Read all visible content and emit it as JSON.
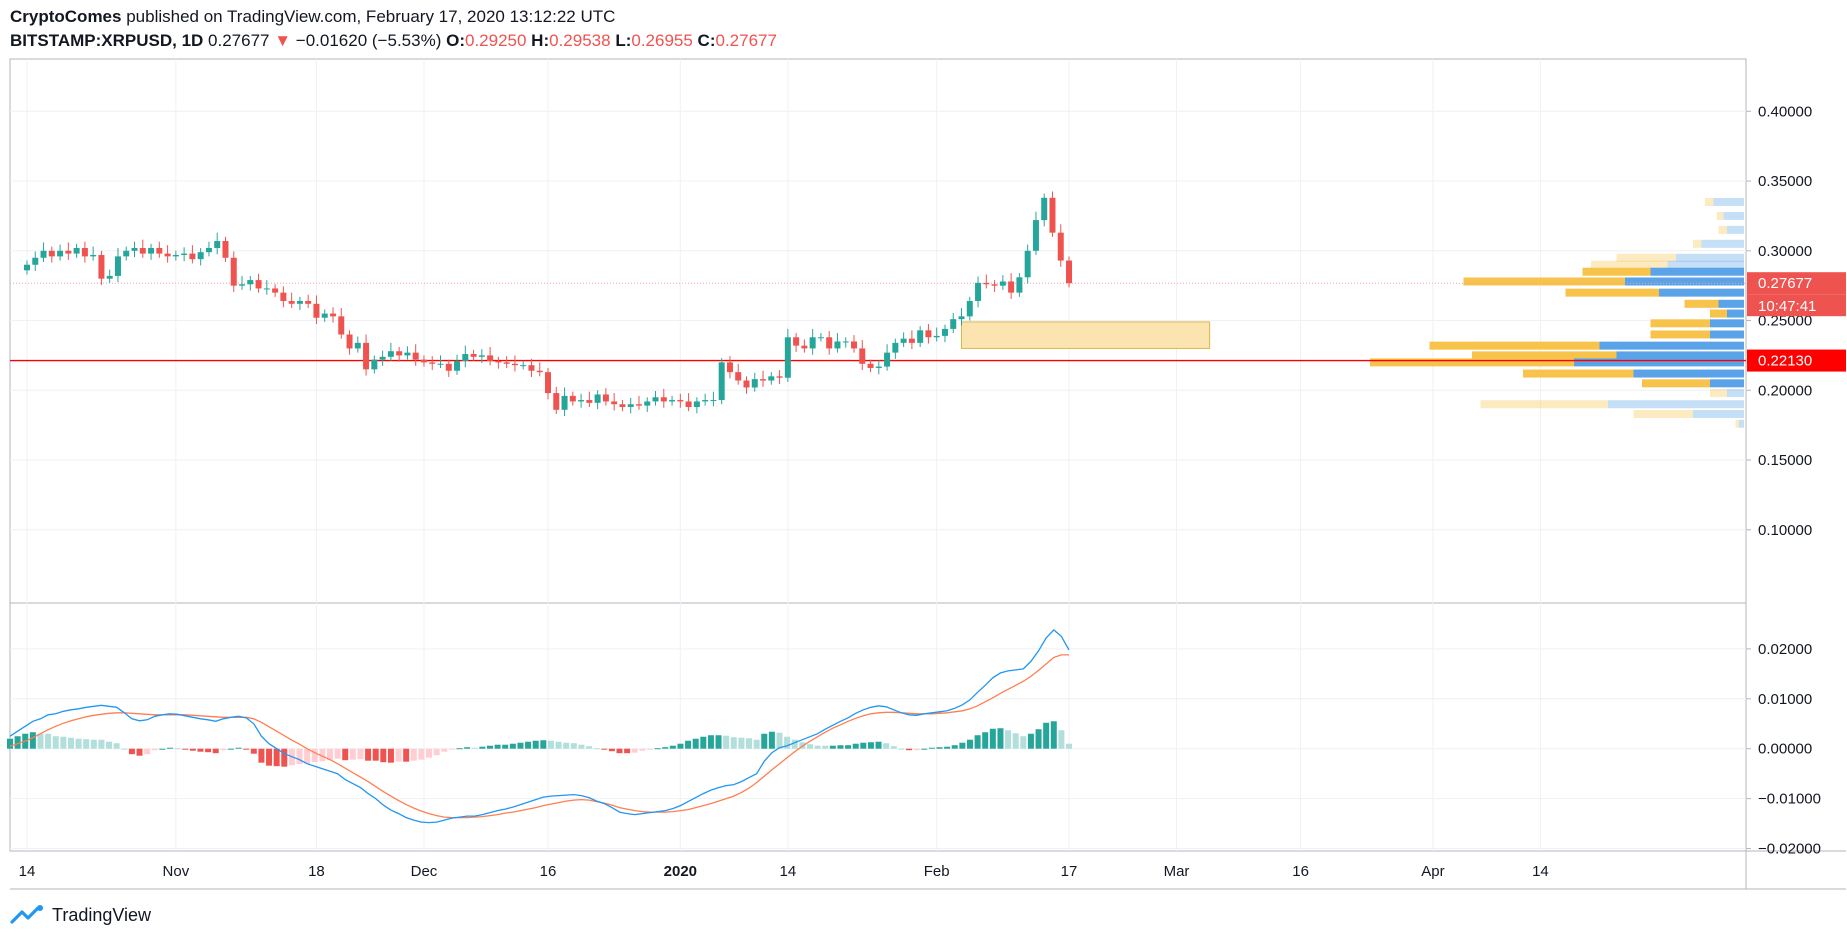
{
  "header": {
    "author": "CryptoComes",
    "published_text": "published on TradingView.com, February 17, 2020 13:12:22 UTC",
    "symbol": "BITSTAMP:XRPUSD, 1D",
    "last": "0.27677",
    "arrow": "▼",
    "change": "−0.01620 (−5.53%)",
    "o_label": "O:",
    "o_value": "0.29250",
    "h_label": "H:",
    "h_value": "0.29538",
    "l_label": "L:",
    "l_value": "0.26955",
    "c_label": "C:",
    "c_value": "0.27677"
  },
  "footer": {
    "brand": "TradingView",
    "logo_icon": "tradingview-logo-icon"
  },
  "colors": {
    "up": "#26a69a",
    "down": "#ef5350",
    "hist_up_strong": "#26a69a",
    "hist_up_weak": "#b2dfdb",
    "hist_down_strong": "#ef5350",
    "hist_down_weak": "#ffcdd2",
    "macd_line": "#2196f3",
    "signal_line": "#ff7f50",
    "support_line": "#ff0000",
    "zone": "#fce4b0",
    "vp_up": "#5aa3e8",
    "vp_down": "#f7c34a"
  },
  "chart_data": [
    {
      "type": "candlestick",
      "title": "",
      "x_tick_labels": [
        "14",
        "Nov",
        "18",
        "Dec",
        "16",
        "2020",
        "14",
        "Feb",
        "17",
        "Mar",
        "16",
        "Apr",
        "14"
      ],
      "y_tick_labels": [
        "0.40000",
        "0.35000",
        "0.30000",
        "0.25000",
        "0.20000",
        "0.15000",
        "0.10000"
      ],
      "ylim": [
        0.0475,
        0.4375
      ],
      "price_labels": [
        {
          "value": 0.27677,
          "text": "0.27677",
          "countdown": "10:47:41"
        },
        {
          "value": 0.2213,
          "text": "0.22130"
        }
      ],
      "support_level": 0.2213,
      "zone": {
        "from": "2020-02-04",
        "to": "2020-03-05",
        "low": 0.23,
        "high": 0.249
      },
      "candles_daily_close": [
        [
          "2019-10-14",
          0.29
        ],
        [
          "2019-10-15",
          0.295
        ],
        [
          "2019-10-16",
          0.3
        ],
        [
          "2019-10-17",
          0.296
        ],
        [
          "2019-10-18",
          0.3
        ],
        [
          "2019-10-19",
          0.298
        ],
        [
          "2019-10-20",
          0.302
        ],
        [
          "2019-10-21",
          0.296
        ],
        [
          "2019-10-22",
          0.297
        ],
        [
          "2019-10-23",
          0.28
        ],
        [
          "2019-10-24",
          0.282
        ],
        [
          "2019-10-25",
          0.296
        ],
        [
          "2019-10-26",
          0.3
        ],
        [
          "2019-10-27",
          0.302
        ],
        [
          "2019-10-28",
          0.298
        ],
        [
          "2019-10-29",
          0.302
        ],
        [
          "2019-10-30",
          0.298
        ],
        [
          "2019-10-31",
          0.296
        ],
        [
          "2019-11-01",
          0.297
        ],
        [
          "2019-11-02",
          0.298
        ],
        [
          "2019-11-03",
          0.294
        ],
        [
          "2019-11-04",
          0.299
        ],
        [
          "2019-11-05",
          0.302
        ],
        [
          "2019-11-06",
          0.307
        ],
        [
          "2019-11-07",
          0.295
        ],
        [
          "2019-11-08",
          0.275
        ],
        [
          "2019-11-09",
          0.276
        ],
        [
          "2019-11-10",
          0.279
        ],
        [
          "2019-11-11",
          0.273
        ],
        [
          "2019-11-12",
          0.273
        ],
        [
          "2019-11-13",
          0.27
        ],
        [
          "2019-11-14",
          0.264
        ],
        [
          "2019-11-15",
          0.262
        ],
        [
          "2019-11-16",
          0.264
        ],
        [
          "2019-11-17",
          0.262
        ],
        [
          "2019-11-18",
          0.252
        ],
        [
          "2019-11-19",
          0.255
        ],
        [
          "2019-11-20",
          0.253
        ],
        [
          "2019-11-21",
          0.24
        ],
        [
          "2019-11-22",
          0.23
        ],
        [
          "2019-11-23",
          0.234
        ],
        [
          "2019-11-24",
          0.215
        ],
        [
          "2019-11-25",
          0.222
        ],
        [
          "2019-11-26",
          0.224
        ],
        [
          "2019-11-27",
          0.228
        ],
        [
          "2019-11-28",
          0.225
        ],
        [
          "2019-11-29",
          0.227
        ],
        [
          "2019-11-30",
          0.222
        ],
        [
          "2019-12-01",
          0.22
        ],
        [
          "2019-12-02",
          0.219
        ],
        [
          "2019-12-03",
          0.219
        ],
        [
          "2019-12-04",
          0.214
        ],
        [
          "2019-12-05",
          0.221
        ],
        [
          "2019-12-06",
          0.226
        ],
        [
          "2019-12-07",
          0.224
        ],
        [
          "2019-12-08",
          0.225
        ],
        [
          "2019-12-09",
          0.221
        ],
        [
          "2019-12-10",
          0.22
        ],
        [
          "2019-12-11",
          0.219
        ],
        [
          "2019-12-12",
          0.218
        ],
        [
          "2019-12-13",
          0.218
        ],
        [
          "2019-12-14",
          0.214
        ],
        [
          "2019-12-15",
          0.213
        ],
        [
          "2019-12-16",
          0.198
        ],
        [
          "2019-12-17",
          0.186
        ],
        [
          "2019-12-18",
          0.196
        ],
        [
          "2019-12-19",
          0.192
        ],
        [
          "2019-12-20",
          0.193
        ],
        [
          "2019-12-21",
          0.191
        ],
        [
          "2019-12-22",
          0.197
        ],
        [
          "2019-12-23",
          0.192
        ],
        [
          "2019-12-24",
          0.19
        ],
        [
          "2019-12-25",
          0.188
        ],
        [
          "2019-12-26",
          0.19
        ],
        [
          "2019-12-27",
          0.189
        ],
        [
          "2019-12-28",
          0.192
        ],
        [
          "2019-12-29",
          0.195
        ],
        [
          "2019-12-30",
          0.192
        ],
        [
          "2019-12-31",
          0.193
        ],
        [
          "2020-01-01",
          0.192
        ],
        [
          "2020-01-02",
          0.188
        ],
        [
          "2020-01-03",
          0.192
        ],
        [
          "2020-01-04",
          0.193
        ],
        [
          "2020-01-05",
          0.193
        ],
        [
          "2020-01-06",
          0.22
        ],
        [
          "2020-01-07",
          0.213
        ],
        [
          "2020-01-08",
          0.207
        ],
        [
          "2020-01-09",
          0.202
        ],
        [
          "2020-01-10",
          0.208
        ],
        [
          "2020-01-11",
          0.207
        ],
        [
          "2020-01-12",
          0.21
        ],
        [
          "2020-01-13",
          0.209
        ],
        [
          "2020-01-14",
          0.238
        ],
        [
          "2020-01-15",
          0.232
        ],
        [
          "2020-01-16",
          0.23
        ],
        [
          "2020-01-17",
          0.238
        ],
        [
          "2020-01-18",
          0.238
        ],
        [
          "2020-01-19",
          0.23
        ],
        [
          "2020-01-20",
          0.235
        ],
        [
          "2020-01-21",
          0.235
        ],
        [
          "2020-01-22",
          0.23
        ],
        [
          "2020-01-23",
          0.219
        ],
        [
          "2020-01-24",
          0.216
        ],
        [
          "2020-01-25",
          0.217
        ],
        [
          "2020-01-26",
          0.227
        ],
        [
          "2020-01-27",
          0.234
        ],
        [
          "2020-01-28",
          0.237
        ],
        [
          "2020-01-29",
          0.234
        ],
        [
          "2020-01-30",
          0.243
        ],
        [
          "2020-01-31",
          0.238
        ],
        [
          "2020-02-01",
          0.239
        ],
        [
          "2020-02-02",
          0.244
        ],
        [
          "2020-02-03",
          0.251
        ],
        [
          "2020-02-04",
          0.253
        ],
        [
          "2020-02-05",
          0.264
        ],
        [
          "2020-02-06",
          0.277
        ],
        [
          "2020-02-07",
          0.276
        ],
        [
          "2020-02-08",
          0.275
        ],
        [
          "2020-02-09",
          0.278
        ],
        [
          "2020-02-10",
          0.27
        ],
        [
          "2020-02-11",
          0.281
        ],
        [
          "2020-02-12",
          0.3
        ],
        [
          "2020-02-13",
          0.322
        ],
        [
          "2020-02-14",
          0.338
        ],
        [
          "2020-02-15",
          0.313
        ],
        [
          "2020-02-16",
          0.293
        ],
        [
          "2020-02-17",
          0.27677
        ]
      ],
      "candles_daily_close_note": "",
      "volume_profile": {
        "rows": [
          {
            "price": 0.335,
            "up": 0.18,
            "down": 0.05,
            "faded": true
          },
          {
            "price": 0.325,
            "up": 0.12,
            "down": 0.04,
            "faded": true
          },
          {
            "price": 0.315,
            "up": 0.1,
            "down": 0.05,
            "faded": true
          },
          {
            "price": 0.305,
            "up": 0.25,
            "down": 0.05,
            "faded": true
          },
          {
            "price": 0.295,
            "up": 0.4,
            "down": 0.35,
            "faded": true
          },
          {
            "price": 0.29,
            "up": 0.45,
            "down": 0.45,
            "faded": true
          },
          {
            "price": 0.285,
            "up": 0.55,
            "down": 0.4,
            "faded": false
          },
          {
            "price": 0.278,
            "up": 0.7,
            "down": 0.95,
            "faded": false
          },
          {
            "price": 0.27,
            "up": 0.5,
            "down": 0.55,
            "faded": false
          },
          {
            "price": 0.262,
            "up": 0.15,
            "down": 0.2,
            "faded": false
          },
          {
            "price": 0.255,
            "up": 0.1,
            "down": 0.1,
            "faded": false
          },
          {
            "price": 0.248,
            "up": 0.2,
            "down": 0.35,
            "faded": false
          },
          {
            "price": 0.24,
            "up": 0.2,
            "down": 0.35,
            "faded": false
          },
          {
            "price": 0.232,
            "up": 0.85,
            "down": 1.0,
            "faded": false
          },
          {
            "price": 0.225,
            "up": 0.75,
            "down": 0.85,
            "faded": false
          },
          {
            "price": 0.22,
            "up": 1.0,
            "down": 1.2,
            "faded": false
          },
          {
            "price": 0.212,
            "up": 0.65,
            "down": 0.65,
            "faded": false
          },
          {
            "price": 0.205,
            "up": 0.2,
            "down": 0.4,
            "faded": false
          },
          {
            "price": 0.198,
            "up": 0.1,
            "down": 0.1,
            "faded": true
          },
          {
            "price": 0.19,
            "up": 0.8,
            "down": 0.75,
            "faded": true
          },
          {
            "price": 0.183,
            "up": 0.3,
            "down": 0.35,
            "faded": true
          },
          {
            "price": 0.176,
            "up": 0.03,
            "down": 0.02,
            "faded": true
          }
        ]
      }
    },
    {
      "type": "macd",
      "title": "",
      "y_tick_labels": [
        "0.02000",
        "0.01000",
        "0.00000",
        "−0.01000",
        "−0.02000"
      ],
      "ylim": [
        -0.0205,
        0.0292
      ],
      "macd": [
        0.0025,
        0.0035,
        0.0045,
        0.0055,
        0.006,
        0.0068,
        0.007,
        0.0075,
        0.0078,
        0.008,
        0.0083,
        0.0085,
        0.0087,
        0.0085,
        0.0083,
        0.0072,
        0.006,
        0.0056,
        0.0058,
        0.0065,
        0.0068,
        0.007,
        0.0069,
        0.0066,
        0.0063,
        0.006,
        0.0058,
        0.0055,
        0.006,
        0.0063,
        0.0065,
        0.0062,
        0.005,
        0.0025,
        0.001,
        0.0,
        -0.001,
        -0.0016,
        -0.0022,
        -0.003,
        -0.0035,
        -0.004,
        -0.0045,
        -0.005,
        -0.0062,
        -0.007,
        -0.0078,
        -0.009,
        -0.01,
        -0.0113,
        -0.0123,
        -0.013,
        -0.0138,
        -0.0143,
        -0.0147,
        -0.0148,
        -0.0147,
        -0.0143,
        -0.0139,
        -0.0137,
        -0.0135,
        -0.0135,
        -0.0132,
        -0.0128,
        -0.0124,
        -0.0121,
        -0.0117,
        -0.0112,
        -0.0107,
        -0.0102,
        -0.0097,
        -0.0095,
        -0.0094,
        -0.0093,
        -0.0092,
        -0.0094,
        -0.0098,
        -0.0105,
        -0.011,
        -0.0118,
        -0.0127,
        -0.013,
        -0.0132,
        -0.013,
        -0.0128,
        -0.0126,
        -0.0124,
        -0.012,
        -0.0114,
        -0.0106,
        -0.0098,
        -0.009,
        -0.0083,
        -0.0078,
        -0.0074,
        -0.0072,
        -0.0066,
        -0.0058,
        -0.005,
        -0.0025,
        -0.0008,
        0.0002,
        0.0006,
        0.0012,
        0.0018,
        0.0024,
        0.003,
        0.0039,
        0.0047,
        0.0055,
        0.0062,
        0.0071,
        0.0078,
        0.0083,
        0.0086,
        0.0084,
        0.0078,
        0.0072,
        0.0068,
        0.0067,
        0.007,
        0.0072,
        0.0074,
        0.0076,
        0.0081,
        0.0088,
        0.0098,
        0.0113,
        0.0127,
        0.0142,
        0.0152,
        0.0156,
        0.0158,
        0.016,
        0.0175,
        0.0196,
        0.0222,
        0.0238,
        0.0225,
        0.0198
      ],
      "signal": [
        0.0005,
        0.001,
        0.0015,
        0.0022,
        0.003,
        0.0038,
        0.0045,
        0.0051,
        0.0056,
        0.006,
        0.0064,
        0.0067,
        0.0069,
        0.0071,
        0.0072,
        0.0072,
        0.0071,
        0.007,
        0.0069,
        0.0068,
        0.0068,
        0.0068,
        0.0068,
        0.0068,
        0.0067,
        0.0066,
        0.0065,
        0.0064,
        0.0063,
        0.0063,
        0.0063,
        0.0063,
        0.006,
        0.0053,
        0.0044,
        0.0035,
        0.0026,
        0.0017,
        0.0009,
        0.0,
        -0.0008,
        -0.0015,
        -0.0022,
        -0.003,
        -0.0039,
        -0.0048,
        -0.0057,
        -0.0066,
        -0.0076,
        -0.0086,
        -0.0095,
        -0.0104,
        -0.0112,
        -0.0119,
        -0.0125,
        -0.013,
        -0.0134,
        -0.0137,
        -0.0138,
        -0.0138,
        -0.0138,
        -0.0137,
        -0.0136,
        -0.0134,
        -0.0132,
        -0.0129,
        -0.0127,
        -0.0124,
        -0.0121,
        -0.0118,
        -0.0114,
        -0.0111,
        -0.0108,
        -0.0105,
        -0.0103,
        -0.0102,
        -0.0103,
        -0.0106,
        -0.0109,
        -0.0113,
        -0.0118,
        -0.0121,
        -0.0124,
        -0.0126,
        -0.0127,
        -0.0127,
        -0.0127,
        -0.0126,
        -0.0124,
        -0.0122,
        -0.0118,
        -0.0114,
        -0.011,
        -0.0105,
        -0.01,
        -0.0095,
        -0.0088,
        -0.0079,
        -0.0068,
        -0.0055,
        -0.0042,
        -0.003,
        -0.0018,
        -0.0006,
        0.0005,
        0.0015,
        0.0024,
        0.0033,
        0.0041,
        0.0048,
        0.0055,
        0.0061,
        0.0066,
        0.007,
        0.0072,
        0.0073,
        0.0073,
        0.0072,
        0.0071,
        0.007,
        0.007,
        0.007,
        0.0071,
        0.0072,
        0.0074,
        0.0076,
        0.008,
        0.0086,
        0.0094,
        0.0102,
        0.0111,
        0.0119,
        0.0127,
        0.0135,
        0.0145,
        0.0157,
        0.017,
        0.0183,
        0.0188,
        0.0188
      ]
    }
  ]
}
